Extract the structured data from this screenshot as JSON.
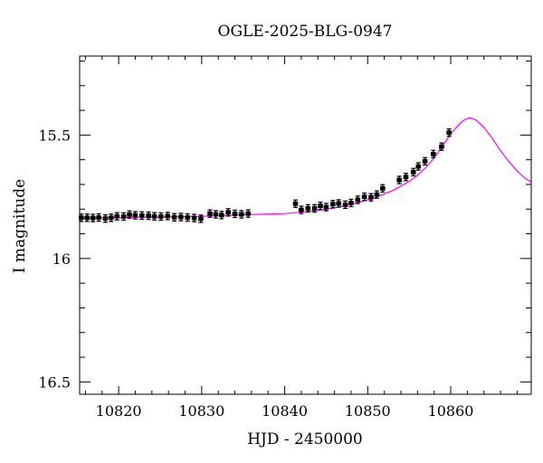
{
  "chart_data": {
    "type": "scatter",
    "title": "OGLE-2025-BLG-0947",
    "xlabel": "HJD - 2450000",
    "ylabel": "I magnitude",
    "xlim": [
      10815.3,
      10869.7
    ],
    "ylim": [
      16.55,
      15.18
    ],
    "y_inverted": true,
    "x_ticks": [
      10820,
      10830,
      10840,
      10850,
      10860
    ],
    "x_tick_labels": [
      "10820",
      "10830",
      "10840",
      "10850",
      "10860"
    ],
    "y_ticks": [
      15.5,
      16,
      16.5
    ],
    "y_tick_labels": [
      "15.5",
      "16",
      "16.5"
    ],
    "x_minor_step": 2,
    "y_minor_step": 0.1,
    "grid": false,
    "colors": {
      "data": "#000000",
      "model": "#ff00ff",
      "axes": "#000000"
    },
    "series": [
      {
        "type": "scatter",
        "x": [
          10815.5,
          10816.2,
          10816.9,
          10817.6,
          10818.4,
          10819.1,
          10819.8,
          10820.6,
          10821.3,
          10822.0,
          10822.8,
          10823.6,
          10824.3,
          10825.1,
          10825.9,
          10826.7,
          10827.5,
          10828.3,
          10829.1,
          10829.9,
          10831.0,
          10831.7,
          10832.4,
          10833.2,
          10834.0,
          10834.8,
          10835.6,
          10841.3,
          10842.0,
          10842.8,
          10843.6,
          10844.3,
          10845.0,
          10845.8,
          10846.5,
          10847.3,
          10848.0,
          10848.8,
          10849.6,
          10850.4,
          10851.1,
          10851.8,
          10853.8,
          10854.6,
          10855.5,
          10856.1,
          10856.9,
          10857.9,
          10858.9,
          10859.8
        ],
        "y": [
          15.835,
          15.835,
          15.836,
          15.834,
          15.838,
          15.835,
          15.829,
          15.83,
          15.822,
          15.825,
          15.826,
          15.827,
          15.829,
          15.83,
          15.828,
          15.833,
          15.832,
          15.834,
          15.836,
          15.839,
          15.818,
          15.821,
          15.824,
          15.813,
          15.819,
          15.821,
          15.818,
          15.778,
          15.803,
          15.797,
          15.797,
          15.787,
          15.792,
          15.78,
          15.777,
          15.782,
          15.775,
          15.762,
          15.75,
          15.752,
          15.741,
          15.716,
          15.682,
          15.67,
          15.65,
          15.627,
          15.606,
          15.577,
          15.547,
          15.49
        ],
        "yerr": 0.015
      },
      {
        "type": "line",
        "x": [
          10815.3,
          10820,
          10825,
          10830,
          10835,
          10840,
          10843,
          10845,
          10847,
          10849,
          10851,
          10853,
          10855,
          10856,
          10857,
          10858,
          10859,
          10860,
          10861,
          10861.7,
          10862.3,
          10863,
          10864,
          10865,
          10866,
          10867,
          10868,
          10869,
          10869.7
        ],
        "y": [
          15.836,
          15.834,
          15.832,
          15.829,
          15.823,
          15.818,
          15.809,
          15.801,
          15.788,
          15.772,
          15.752,
          15.725,
          15.688,
          15.663,
          15.632,
          15.592,
          15.545,
          15.496,
          15.456,
          15.437,
          15.43,
          15.438,
          15.468,
          15.513,
          15.563,
          15.607,
          15.645,
          15.676,
          15.69
        ]
      }
    ]
  }
}
